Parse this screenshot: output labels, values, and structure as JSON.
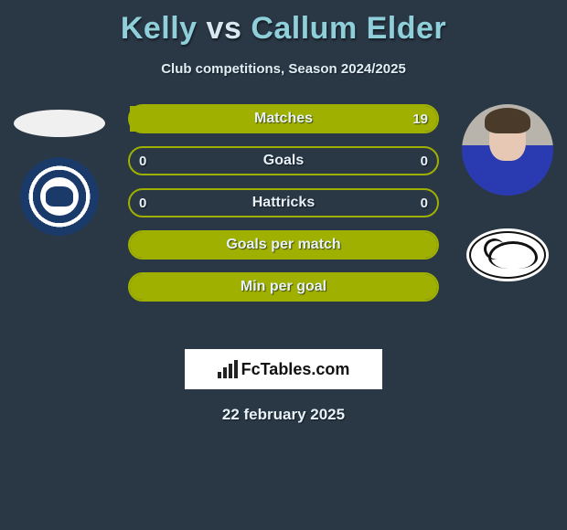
{
  "title": {
    "player1": "Kelly",
    "vs": "vs",
    "player2": "Callum Elder"
  },
  "subtitle": "Club competitions, Season 2024/2025",
  "stats": {
    "rows": [
      {
        "label": "Matches",
        "left": "",
        "right": "19",
        "fill_left_pct": 0,
        "fill_right_pct": 100
      },
      {
        "label": "Goals",
        "left": "0",
        "right": "0",
        "fill_left_pct": 0,
        "fill_right_pct": 0
      },
      {
        "label": "Hattricks",
        "left": "0",
        "right": "0",
        "fill_left_pct": 0,
        "fill_right_pct": 0
      },
      {
        "label": "Goals per match",
        "left": "",
        "right": "",
        "fill_left_pct": 50,
        "fill_right_pct": 50
      },
      {
        "label": "Min per goal",
        "left": "",
        "right": "",
        "fill_left_pct": 50,
        "fill_right_pct": 50
      }
    ],
    "bar_border_color": "#9fb000",
    "bar_fill_color": "#9fb000"
  },
  "branding": {
    "text": "FcTables.com"
  },
  "date": "22 february 2025",
  "colors": {
    "background": "#2a3745",
    "title_name": "#8ecfd9",
    "text": "#e6f2f8"
  }
}
